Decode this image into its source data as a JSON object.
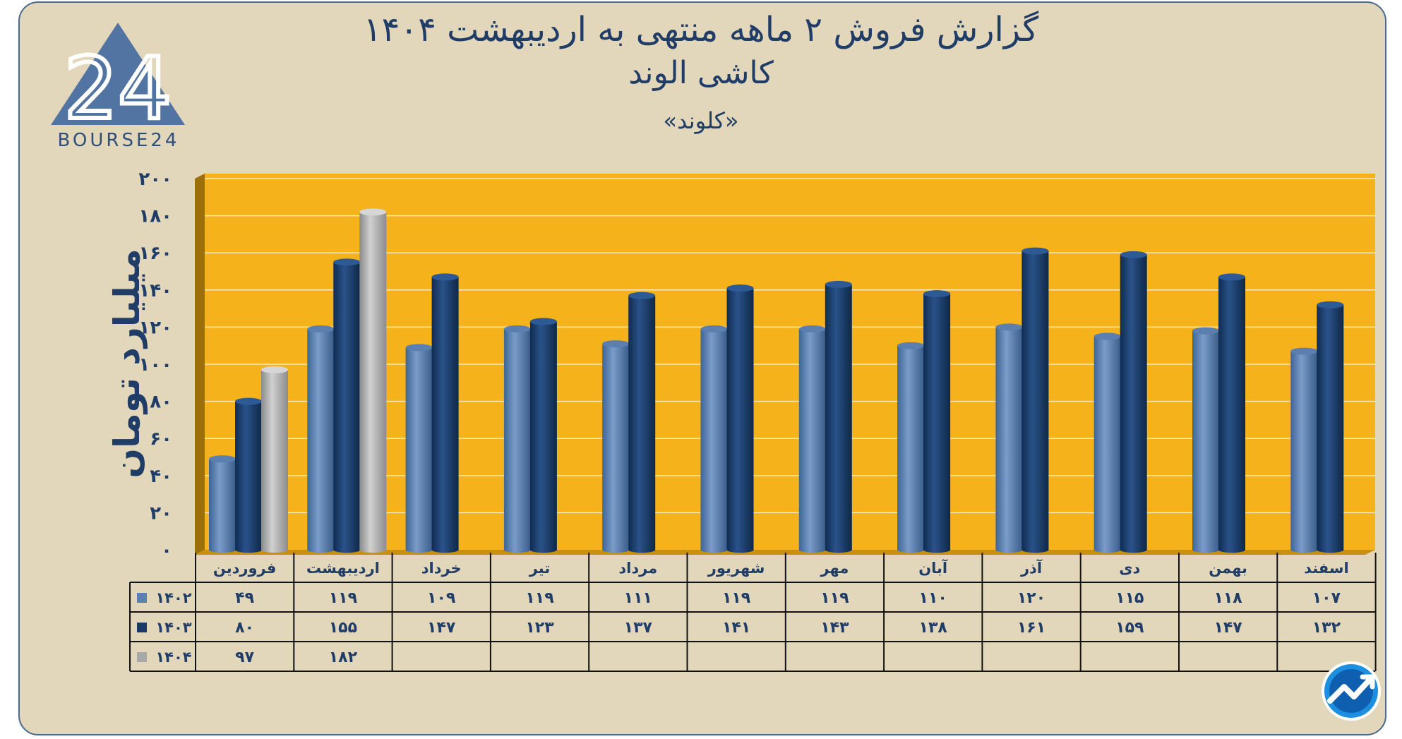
{
  "header": {
    "title": "گزارش  فروش ۲ ماهه منتهی به اردیبهشت ۱۴۰۴",
    "subtitle": "کاشی الوند",
    "ticker": "«کلوند»"
  },
  "logo": {
    "text": "BOURSE24",
    "mark": "24"
  },
  "colors": {
    "background": "#e3d7bb",
    "plot_area": "#f6b21b",
    "series_1402": "#5b7fae",
    "series_1403": "#173a66",
    "series_1404": "#a8a8a8",
    "text": "#1f3d66"
  },
  "chart_data": {
    "type": "bar",
    "ylabel": "میلیارد تومان",
    "ylim": [
      0,
      200
    ],
    "yticks": [
      0,
      20,
      40,
      60,
      80,
      100,
      120,
      140,
      160,
      180,
      200
    ],
    "ytick_labels": [
      "۰",
      "۲۰",
      "۴۰",
      "۶۰",
      "۸۰",
      "۱۰۰",
      "۱۲۰",
      "۱۴۰",
      "۱۶۰",
      "۱۸۰",
      "۲۰۰"
    ],
    "grid": true,
    "legend": "data-table",
    "categories": [
      "فروردین",
      "اردیبهشت",
      "خرداد",
      "تیر",
      "مرداد",
      "شهریور",
      "مهر",
      "آبان",
      "آذر",
      "دی",
      "بهمن",
      "اسفند"
    ],
    "series": [
      {
        "name": "۱۴۰۲",
        "values": [
          49,
          119,
          109,
          119,
          111,
          119,
          119,
          110,
          120,
          115,
          118,
          107
        ],
        "labels": [
          "۴۹",
          "۱۱۹",
          "۱۰۹",
          "۱۱۹",
          "۱۱۱",
          "۱۱۹",
          "۱۱۹",
          "۱۱۰",
          "۱۲۰",
          "۱۱۵",
          "۱۱۸",
          "۱۰۷"
        ]
      },
      {
        "name": "۱۴۰۳",
        "values": [
          80,
          155,
          147,
          123,
          137,
          141,
          143,
          138,
          161,
          159,
          147,
          132
        ],
        "labels": [
          "۸۰",
          "۱۵۵",
          "۱۴۷",
          "۱۲۳",
          "۱۳۷",
          "۱۴۱",
          "۱۴۳",
          "۱۳۸",
          "۱۶۱",
          "۱۵۹",
          "۱۴۷",
          "۱۳۲"
        ]
      },
      {
        "name": "۱۴۰۴",
        "values": [
          97,
          182,
          null,
          null,
          null,
          null,
          null,
          null,
          null,
          null,
          null,
          null
        ],
        "labels": [
          "۹۷",
          "۱۸۲",
          "",
          "",
          "",
          "",
          "",
          "",
          "",
          "",
          "",
          ""
        ]
      }
    ]
  }
}
